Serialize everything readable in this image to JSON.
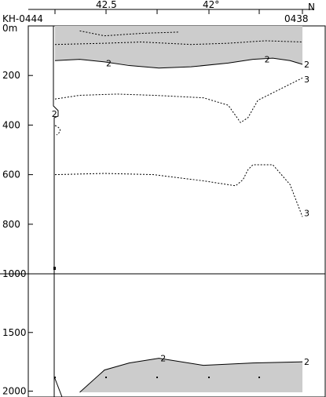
{
  "chart_data": {
    "type": "contour-section",
    "header": {
      "left_station": "KH-0444",
      "right_station": "0438",
      "right_letter": "N",
      "top_ticks": [
        "42.5",
        "42°"
      ]
    },
    "y_axis": {
      "unit_label": "0m",
      "upper_ticks": [
        200,
        400,
        600,
        800
      ],
      "split_tick": 1000,
      "lower_ticks": [
        1500,
        2000
      ]
    },
    "upper_panel": {
      "depth_range": [
        0,
        1000
      ],
      "shaded_region_contour": 2,
      "contours": [
        {
          "level": "2",
          "style": "solid",
          "x": [
            0,
            0.1,
            0.2,
            0.3,
            0.42,
            0.55,
            0.7,
            0.8,
            0.88,
            0.95,
            1.0
          ],
          "depth": [
            140,
            135,
            145,
            160,
            170,
            165,
            150,
            135,
            130,
            140,
            155
          ]
        },
        {
          "level": "3",
          "style": "dashed",
          "x": [
            0,
            0.1,
            0.25,
            0.4,
            0.6,
            0.7,
            0.75,
            0.78,
            0.82,
            0.9,
            1.0
          ],
          "depth": [
            295,
            280,
            275,
            280,
            290,
            320,
            390,
            370,
            300,
            260,
            210
          ]
        },
        {
          "level": "3",
          "style": "dashed",
          "x": [
            0,
            0.2,
            0.4,
            0.6,
            0.73,
            0.76,
            0.78,
            0.8,
            0.88,
            0.95,
            1.0
          ],
          "depth": [
            600,
            595,
            600,
            625,
            645,
            620,
            580,
            560,
            560,
            640,
            770
          ]
        }
      ],
      "labels": [
        {
          "text": "2",
          "x": 0.2,
          "depth": 150
        },
        {
          "text": "2",
          "x": 0.84,
          "depth": 135
        },
        {
          "text": "2",
          "x": 1.0,
          "depth": 155
        },
        {
          "text": "3",
          "x": 1.0,
          "depth": 215
        },
        {
          "text": "3",
          "x": 1.0,
          "depth": 755
        },
        {
          "text": "2",
          "x": -0.02,
          "depth": 355
        }
      ]
    },
    "lower_panel": {
      "depth_range": [
        1000,
        2050
      ],
      "shaded_region_contour": 2,
      "contour": {
        "level": "2",
        "x": [
          0.1,
          0.2,
          0.3,
          0.42,
          0.6,
          0.8,
          1.0
        ],
        "depth": [
          2010,
          1820,
          1760,
          1720,
          1780,
          1760,
          1750
        ]
      },
      "labels": [
        {
          "text": "2",
          "x": 0.42,
          "depth": 1720
        },
        {
          "text": "2",
          "x": 1.0,
          "depth": 1750
        }
      ]
    }
  }
}
